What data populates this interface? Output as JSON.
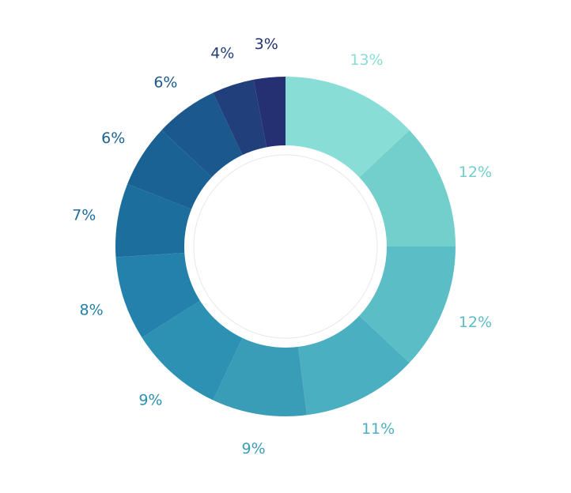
{
  "chart_data": {
    "type": "pie",
    "variant": "donut",
    "start_angle": "top",
    "direction": "clockwise",
    "title": "",
    "legend": "none",
    "values": [
      13,
      12,
      12,
      11,
      9,
      9,
      8,
      7,
      6,
      6,
      4,
      3
    ],
    "labels": [
      "13%",
      "12%",
      "12%",
      "11%",
      "9%",
      "9%",
      "8%",
      "7%",
      "6%",
      "6%",
      "4%",
      "3%"
    ],
    "colors": [
      "#88ded6",
      "#72cfcc",
      "#5bbec7",
      "#4aafc0",
      "#3a9db8",
      "#2c91b2",
      "#2381ab",
      "#1c6e9d",
      "#1a6293",
      "#1b588e",
      "#213f7a",
      "#243071"
    ],
    "label_colors": [
      "#88ded6",
      "#72cfcc",
      "#5bbec7",
      "#4aafc0",
      "#3a9db8",
      "#2c91b2",
      "#2381ab",
      "#1c6e9d",
      "#1a6293",
      "#1b588e",
      "#213f7a",
      "#243071"
    ]
  }
}
